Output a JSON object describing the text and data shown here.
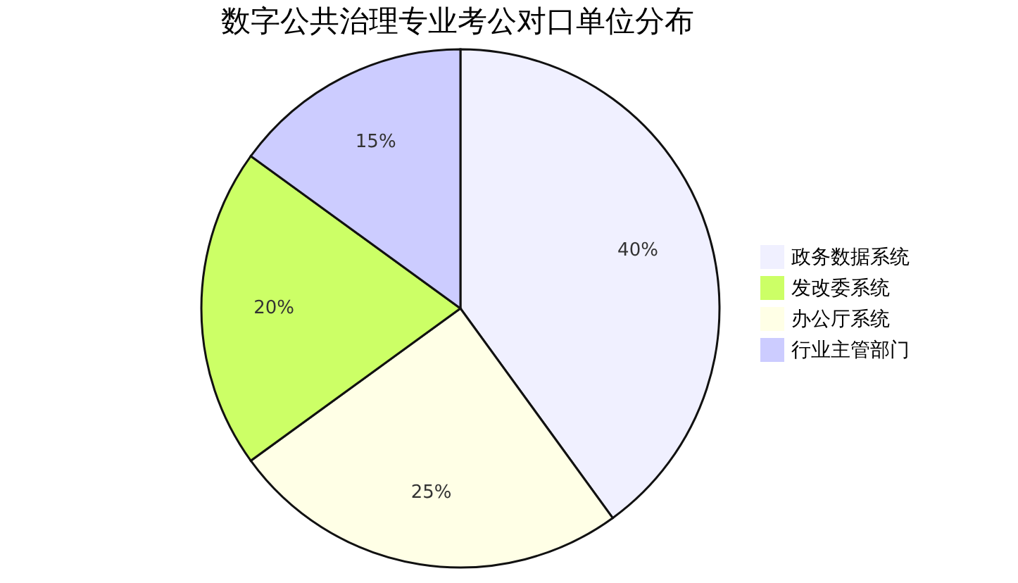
{
  "chart_data": {
    "type": "pie",
    "title": "数字公共治理专业考公对口单位分布",
    "categories": [
      "政务数据系统",
      "发改委系统",
      "办公厅系统",
      "行业主管部门"
    ],
    "values": [
      40,
      20,
      25,
      15
    ],
    "colors": [
      "#f0f0ff",
      "#ccff66",
      "#ffffe6",
      "#ccccff"
    ],
    "value_labels": [
      "40%",
      "20%",
      "25%",
      "15%"
    ],
    "legend": "right"
  }
}
